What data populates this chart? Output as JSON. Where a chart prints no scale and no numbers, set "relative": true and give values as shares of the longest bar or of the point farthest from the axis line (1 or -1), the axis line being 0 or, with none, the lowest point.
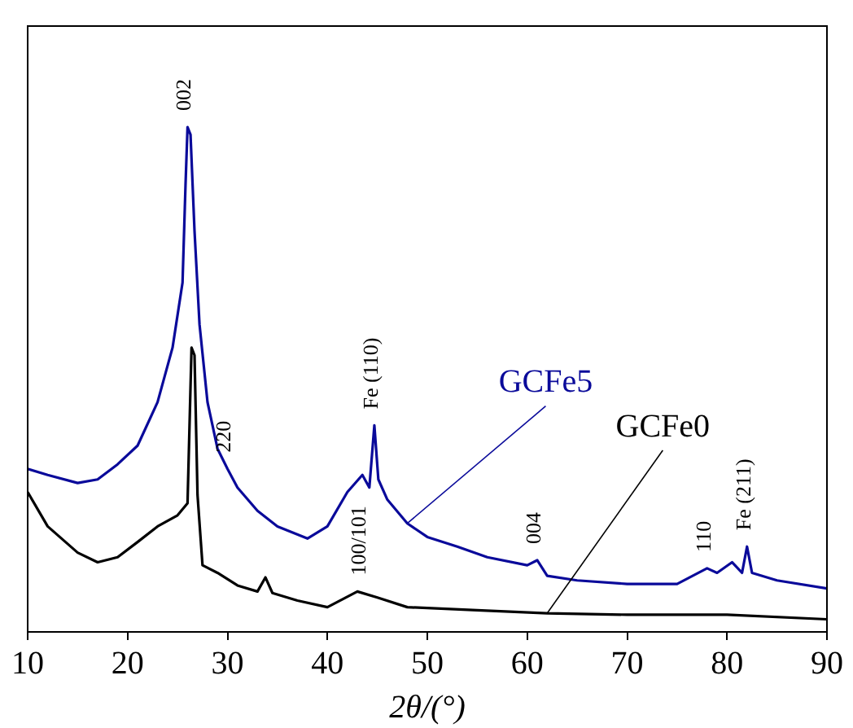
{
  "chart_data": {
    "type": "line",
    "relative": true,
    "xlabel": "2θ/(°)",
    "xlim": [
      10,
      90
    ],
    "xticks": [
      10,
      20,
      30,
      40,
      50,
      60,
      70,
      80,
      90
    ],
    "legend": false,
    "grid": false,
    "marker": "none",
    "line_style": "solid",
    "series": [
      {
        "name": "GCFe5",
        "color": "#0a0a9a",
        "x": [
          10,
          12,
          15,
          17,
          19,
          21,
          23,
          24.5,
          25.5,
          25.8,
          26,
          26.3,
          26.7,
          27.2,
          28,
          29,
          30,
          31,
          33,
          35,
          38,
          40,
          42,
          43.5,
          44.2,
          44.7,
          45.1,
          46,
          48,
          50,
          53,
          56,
          60,
          61,
          62,
          65,
          70,
          75,
          78,
          79,
          80.5,
          81.5,
          82,
          82.5,
          85,
          90
        ],
        "values": [
          0.323,
          0.311,
          0.295,
          0.302,
          0.332,
          0.369,
          0.455,
          0.563,
          0.692,
          0.886,
          1.0,
          0.985,
          0.794,
          0.609,
          0.455,
          0.363,
          0.323,
          0.286,
          0.24,
          0.209,
          0.185,
          0.209,
          0.277,
          0.311,
          0.286,
          0.409,
          0.302,
          0.262,
          0.215,
          0.188,
          0.169,
          0.148,
          0.132,
          0.142,
          0.111,
          0.102,
          0.095,
          0.095,
          0.126,
          0.117,
          0.138,
          0.117,
          0.169,
          0.117,
          0.102,
          0.086
        ]
      },
      {
        "name": "GCFe0",
        "color": "#000000",
        "x": [
          10,
          12,
          15,
          17,
          19,
          21,
          23,
          25,
          26,
          26.4,
          26.7,
          27,
          27.5,
          29,
          31,
          33,
          33.8,
          34.5,
          37,
          40,
          43,
          45,
          48,
          55,
          62,
          70,
          80,
          90
        ],
        "values": [
          0.277,
          0.209,
          0.157,
          0.138,
          0.148,
          0.178,
          0.209,
          0.231,
          0.255,
          0.563,
          0.548,
          0.271,
          0.132,
          0.117,
          0.092,
          0.08,
          0.108,
          0.077,
          0.062,
          0.049,
          0.08,
          0.068,
          0.049,
          0.043,
          0.037,
          0.034,
          0.034,
          0.025
        ]
      }
    ],
    "annotations": [
      {
        "text": "002",
        "x": 26,
        "y": 1.0
      },
      {
        "text": "220",
        "x": 30,
        "y": 0.323
      },
      {
        "text": "Fe (110)",
        "x": 44.7,
        "y": 0.409
      },
      {
        "text": "100/101",
        "x": 43.5,
        "y": 0.08
      },
      {
        "text": "004",
        "x": 61,
        "y": 0.142
      },
      {
        "text": "110",
        "x": 78,
        "y": 0.126
      },
      {
        "text": "Fe (211)",
        "x": 82,
        "y": 0.169
      }
    ]
  }
}
